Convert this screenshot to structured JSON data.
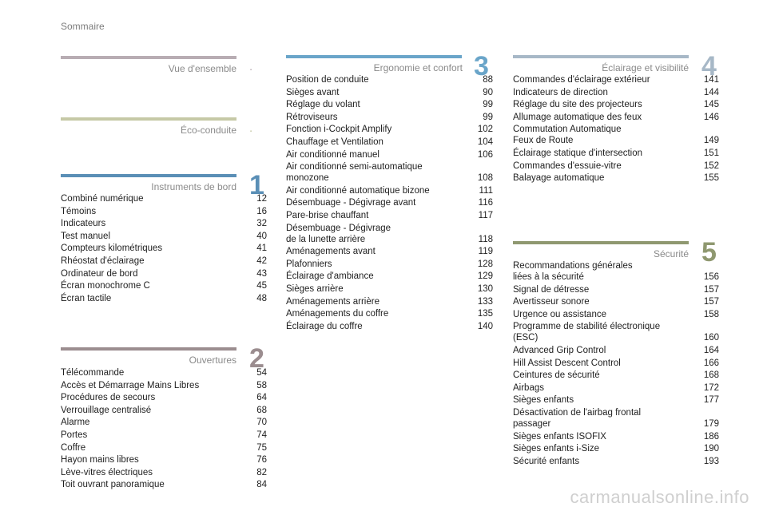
{
  "page_title": "Sommaire",
  "colors": {
    "vue": "#b8adb3",
    "eco": "#c6c9a6",
    "instruments": "#5a8fb6",
    "ouvertures": "#9b8d8f",
    "ergonomie": "#6aa5c9",
    "eclairage": "#a7b8c7",
    "securite": "#8f9870"
  },
  "sections": {
    "vue": {
      "title": "Vue d'ensemble",
      "marker": "."
    },
    "eco": {
      "title": "Éco-conduite",
      "marker": "."
    },
    "instruments": {
      "title": "Instruments de bord",
      "number": "1",
      "entries": [
        {
          "label": "Combiné numérique",
          "page": "12"
        },
        {
          "label": "Témoins",
          "page": "16"
        },
        {
          "label": "Indicateurs",
          "page": "32"
        },
        {
          "label": "Test manuel",
          "page": "40"
        },
        {
          "label": "Compteurs kilométriques",
          "page": "41"
        },
        {
          "label": "Rhéostat d'éclairage",
          "page": "42"
        },
        {
          "label": "Ordinateur de bord",
          "page": "43"
        },
        {
          "label": "Écran monochrome C",
          "page": "45"
        },
        {
          "label": "Écran tactile",
          "page": "48"
        }
      ]
    },
    "ouvertures": {
      "title": "Ouvertures",
      "number": "2",
      "entries": [
        {
          "label": "Télécommande",
          "page": "54"
        },
        {
          "label": "Accès et Démarrage Mains Libres",
          "page": "58"
        },
        {
          "label": "Procédures de secours",
          "page": "64"
        },
        {
          "label": "Verrouillage centralisé",
          "page": "68"
        },
        {
          "label": "Alarme",
          "page": "70"
        },
        {
          "label": "Portes",
          "page": "74"
        },
        {
          "label": "Coffre",
          "page": "75"
        },
        {
          "label": "Hayon mains libres",
          "page": "76"
        },
        {
          "label": "Lève-vitres électriques",
          "page": "82"
        },
        {
          "label": "Toit ouvrant panoramique",
          "page": "84"
        }
      ]
    },
    "ergonomie": {
      "title": "Ergonomie et confort",
      "number": "3",
      "entries": [
        {
          "label": "Position de conduite",
          "page": "88"
        },
        {
          "label": "Sièges avant",
          "page": "90"
        },
        {
          "label": "Réglage du volant",
          "page": "99"
        },
        {
          "label": "Rétroviseurs",
          "page": "99"
        },
        {
          "label": "Fonction i-Cockpit Amplify",
          "page": "102"
        },
        {
          "label": "Chauffage et Ventilation",
          "page": "104"
        },
        {
          "label": "Air conditionné manuel",
          "page": "106"
        },
        {
          "label": "Air conditionné semi-automatique\n   monozone",
          "page": "108"
        },
        {
          "label": "Air conditionné automatique bizone",
          "page": "111"
        },
        {
          "label": "Désembuage - Dégivrage avant",
          "page": "116"
        },
        {
          "label": "Pare-brise chauffant",
          "page": "117"
        },
        {
          "label": "Désembuage - Dégivrage\n   de la lunette arrière",
          "page": "118"
        },
        {
          "label": "Aménagements avant",
          "page": "119"
        },
        {
          "label": "Plafonniers",
          "page": "128"
        },
        {
          "label": "Éclairage d'ambiance",
          "page": "129"
        },
        {
          "label": "Sièges arrière",
          "page": "130"
        },
        {
          "label": "Aménagements arrière",
          "page": "133"
        },
        {
          "label": "Aménagements du coffre",
          "page": "135"
        },
        {
          "label": "Éclairage du coffre",
          "page": "140"
        }
      ]
    },
    "eclairage": {
      "title": "Éclairage et visibilité",
      "number": "4",
      "entries": [
        {
          "label": "Commandes d'éclairage extérieur",
          "page": "141"
        },
        {
          "label": "Indicateurs de direction",
          "page": "144"
        },
        {
          "label": "Réglage du site des projecteurs",
          "page": "145"
        },
        {
          "label": "Allumage automatique des feux",
          "page": "146"
        },
        {
          "label": "Commutation Automatique\n   Feux de Route",
          "page": "149"
        },
        {
          "label": "Éclairage statique d'intersection",
          "page": "151"
        },
        {
          "label": "Commandes d'essuie-vitre",
          "page": "152"
        },
        {
          "label": "Balayage automatique",
          "page": "155"
        }
      ]
    },
    "securite": {
      "title": "Sécurité",
      "number": "5",
      "entries": [
        {
          "label": "Recommandations générales\n   liées à la sécurité",
          "page": "156"
        },
        {
          "label": "Signal de détresse",
          "page": "157"
        },
        {
          "label": "Avertisseur sonore",
          "page": "157"
        },
        {
          "label": "Urgence ou assistance",
          "page": "158"
        },
        {
          "label": "Programme de stabilité électronique\n   (ESC)",
          "page": "160"
        },
        {
          "label": "Advanced Grip Control",
          "page": "164"
        },
        {
          "label": "Hill Assist Descent Control",
          "page": "166"
        },
        {
          "label": "Ceintures de sécurité",
          "page": "168"
        },
        {
          "label": "Airbags",
          "page": "172"
        },
        {
          "label": "Sièges enfants",
          "page": "177"
        },
        {
          "label": "Désactivation de l'airbag frontal\n   passager",
          "page": "179"
        },
        {
          "label": "Sièges enfants ISOFIX",
          "page": "186"
        },
        {
          "label": "Sièges enfants i-Size",
          "page": "190"
        },
        {
          "label": "Sécurité enfants",
          "page": "193"
        }
      ]
    }
  },
  "watermark": "carmanualsonline.info"
}
